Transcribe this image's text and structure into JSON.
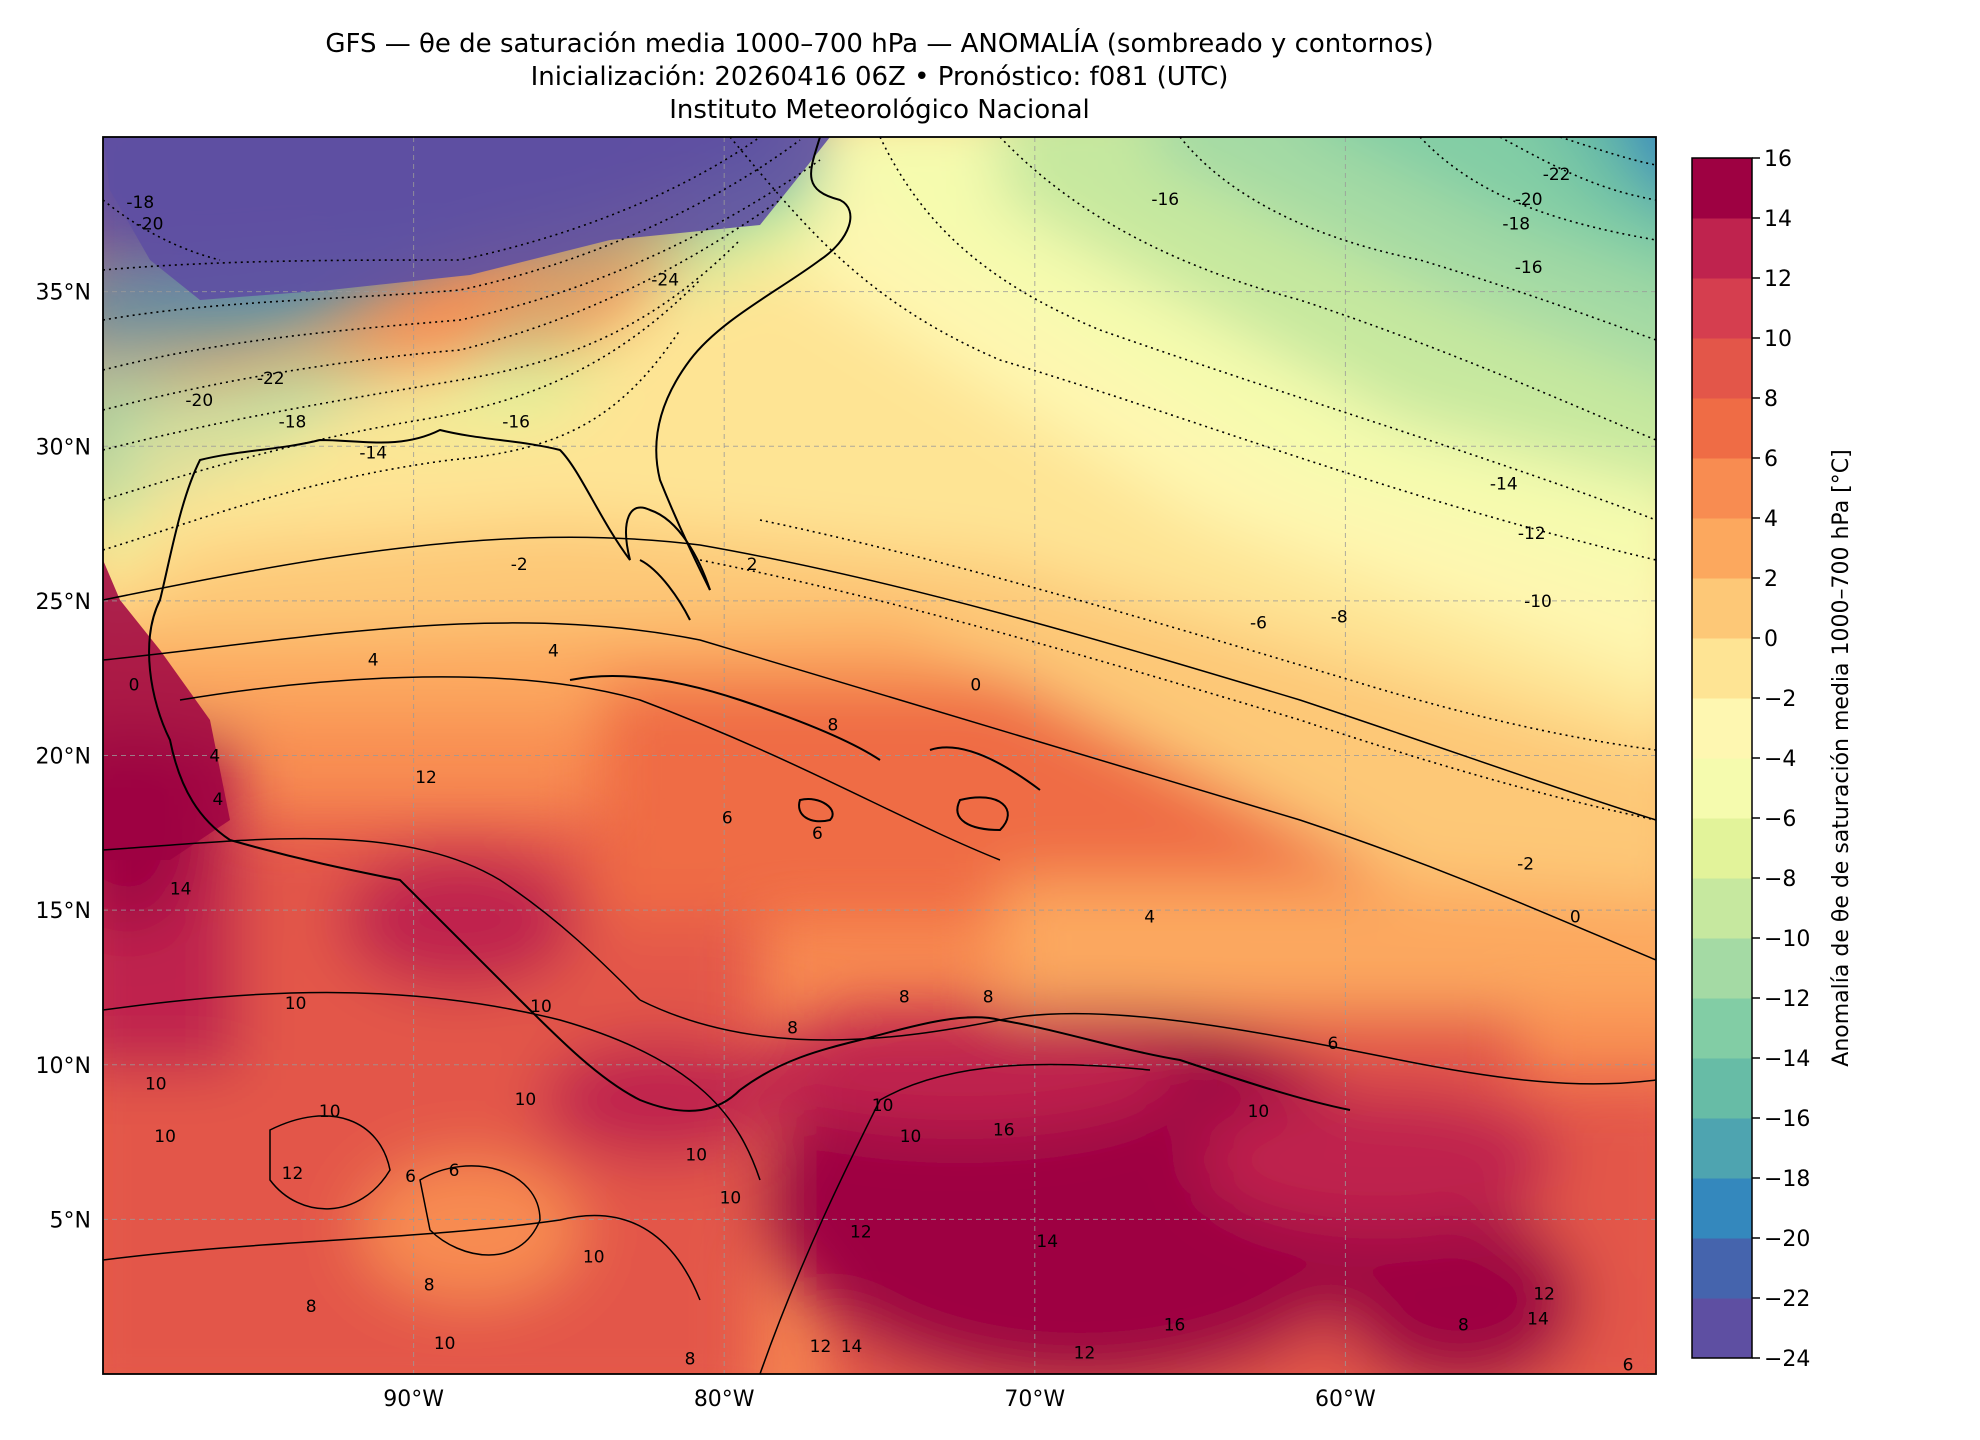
{
  "title": {
    "line1": "GFS — θe de saturación media 1000–700 hPa — ANOMALÍA (sombreado y contornos)",
    "line2": "Inicialización: 20260416 06Z   •   Pronóstico: f081 (UTC)",
    "line3": "Instituto Meteorológico Nacional"
  },
  "map": {
    "lon_range": [
      -100,
      -50
    ],
    "lat_range": [
      0,
      40
    ],
    "lon_ticks": [
      {
        "value": -90,
        "label": "90°W"
      },
      {
        "value": -80,
        "label": "80°W"
      },
      {
        "value": -70,
        "label": "70°W"
      },
      {
        "value": -60,
        "label": "60°W"
      }
    ],
    "lat_ticks": [
      {
        "value": 5,
        "label": "5°N"
      },
      {
        "value": 10,
        "label": "10°N"
      },
      {
        "value": 15,
        "label": "15°N"
      },
      {
        "value": 20,
        "label": "20°N"
      },
      {
        "value": 25,
        "label": "25°N"
      },
      {
        "value": 30,
        "label": "30°N"
      },
      {
        "value": 35,
        "label": "35°N"
      }
    ],
    "gridlines": true,
    "contour_labels": [
      {
        "text": "-22",
        "lon": -53.2,
        "lat": 38.8
      },
      {
        "text": "-20",
        "lon": -54.1,
        "lat": 38.0
      },
      {
        "text": "-18",
        "lon": -54.5,
        "lat": 37.2
      },
      {
        "text": "-16",
        "lon": -54.1,
        "lat": 35.8
      },
      {
        "text": "-16",
        "lon": -65.8,
        "lat": 38.0
      },
      {
        "text": "-14",
        "lon": -54.9,
        "lat": 28.8
      },
      {
        "text": "-12",
        "lon": -54.0,
        "lat": 27.2
      },
      {
        "text": "-10",
        "lon": -53.8,
        "lat": 25.0
      },
      {
        "text": "-8",
        "lon": -60.2,
        "lat": 24.5
      },
      {
        "text": "-6",
        "lon": -62.8,
        "lat": 24.3
      },
      {
        "text": "-2",
        "lon": -54.2,
        "lat": 16.5
      },
      {
        "text": "0",
        "lon": -52.6,
        "lat": 14.8
      },
      {
        "text": "0",
        "lon": -71.9,
        "lat": 22.3
      },
      {
        "text": "-24",
        "lon": -81.9,
        "lat": 35.4
      },
      {
        "text": "-22",
        "lon": -94.6,
        "lat": 32.2
      },
      {
        "text": "-20",
        "lon": -96.9,
        "lat": 31.5
      },
      {
        "text": "-18",
        "lon": -93.9,
        "lat": 30.8
      },
      {
        "text": "-16",
        "lon": -86.7,
        "lat": 30.8
      },
      {
        "text": "-14",
        "lon": -91.3,
        "lat": 29.8
      },
      {
        "text": "-18",
        "lon": -98.8,
        "lat": 37.9
      },
      {
        "text": "-20",
        "lon": -98.5,
        "lat": 37.2
      },
      {
        "text": "-2",
        "lon": -86.6,
        "lat": 26.2
      },
      {
        "text": "2",
        "lon": -79.1,
        "lat": 26.2
      },
      {
        "text": "4",
        "lon": -91.3,
        "lat": 23.1
      },
      {
        "text": "4",
        "lon": -85.5,
        "lat": 23.4
      },
      {
        "text": "0",
        "lon": -99.0,
        "lat": 22.3
      },
      {
        "text": "4",
        "lon": -96.4,
        "lat": 20.0
      },
      {
        "text": "4",
        "lon": -96.3,
        "lat": 18.6
      },
      {
        "text": "12",
        "lon": -89.6,
        "lat": 19.3
      },
      {
        "text": "14",
        "lon": -97.5,
        "lat": 15.7
      },
      {
        "text": "6",
        "lon": -79.9,
        "lat": 18.0
      },
      {
        "text": "6",
        "lon": -77.0,
        "lat": 17.5
      },
      {
        "text": "8",
        "lon": -76.5,
        "lat": 21.0
      },
      {
        "text": "4",
        "lon": -66.3,
        "lat": 14.8
      },
      {
        "text": "6",
        "lon": -60.4,
        "lat": 10.7
      },
      {
        "text": "8",
        "lon": -74.2,
        "lat": 12.2
      },
      {
        "text": "8",
        "lon": -71.5,
        "lat": 12.2
      },
      {
        "text": "8",
        "lon": -77.8,
        "lat": 11.2
      },
      {
        "text": "10",
        "lon": -85.9,
        "lat": 11.9
      },
      {
        "text": "10",
        "lon": -93.8,
        "lat": 12.0
      },
      {
        "text": "10",
        "lon": -86.4,
        "lat": 8.9
      },
      {
        "text": "10",
        "lon": -92.7,
        "lat": 8.5
      },
      {
        "text": "10",
        "lon": -98.3,
        "lat": 9.4
      },
      {
        "text": "10",
        "lon": -98.0,
        "lat": 7.7
      },
      {
        "text": "12",
        "lon": -93.9,
        "lat": 6.5
      },
      {
        "text": "6",
        "lon": -90.1,
        "lat": 6.4
      },
      {
        "text": "6",
        "lon": -88.7,
        "lat": 6.6
      },
      {
        "text": "10",
        "lon": -80.9,
        "lat": 7.1
      },
      {
        "text": "10",
        "lon": -74.9,
        "lat": 8.7
      },
      {
        "text": "10",
        "lon": -74.0,
        "lat": 7.7
      },
      {
        "text": "10",
        "lon": -79.8,
        "lat": 5.7
      },
      {
        "text": "16",
        "lon": -71.0,
        "lat": 7.9
      },
      {
        "text": "10",
        "lon": -62.8,
        "lat": 8.5
      },
      {
        "text": "14",
        "lon": -69.6,
        "lat": 4.3
      },
      {
        "text": "12",
        "lon": -75.6,
        "lat": 4.6
      },
      {
        "text": "10",
        "lon": -84.2,
        "lat": 3.8
      },
      {
        "text": "8",
        "lon": -93.3,
        "lat": 2.2
      },
      {
        "text": "8",
        "lon": -89.5,
        "lat": 2.9
      },
      {
        "text": "10",
        "lon": -89.0,
        "lat": 1.0
      },
      {
        "text": "8",
        "lon": -81.1,
        "lat": 0.5
      },
      {
        "text": "12",
        "lon": -76.9,
        "lat": 0.9
      },
      {
        "text": "14",
        "lon": -75.9,
        "lat": 0.9
      },
      {
        "text": "12",
        "lon": -68.4,
        "lat": 0.7
      },
      {
        "text": "16",
        "lon": -65.5,
        "lat": 1.6
      },
      {
        "text": "12",
        "lon": -53.6,
        "lat": 2.6
      },
      {
        "text": "14",
        "lon": -53.8,
        "lat": 1.8
      },
      {
        "text": "8",
        "lon": -56.2,
        "lat": 1.6
      },
      {
        "text": "6",
        "lon": -50.9,
        "lat": 0.3
      }
    ]
  },
  "colorbar": {
    "label": "Anomalía de θe de saturación media 1000–700 hPa [°C]",
    "min": -24,
    "max": 16,
    "step": 2,
    "tick_labels": [
      "16",
      "14",
      "12",
      "10",
      "8",
      "6",
      "4",
      "2",
      "0",
      "−2",
      "−4",
      "−6",
      "−8",
      "−10",
      "−12",
      "−14",
      "−16",
      "−18",
      "−20",
      "−22",
      "−24"
    ],
    "colors": [
      "#5e4fa2",
      "#4564ad",
      "#3488bd",
      "#4ea4b0",
      "#67bca6",
      "#82cda5",
      "#a4daa4",
      "#c6e89f",
      "#e2f39a",
      "#f5fbae",
      "#fef7b1",
      "#fee494",
      "#fdc877",
      "#fca85e",
      "#f88c51",
      "#ef6c45",
      "#e35649",
      "#d53e4f",
      "#bf234e",
      "#9e0142"
    ]
  }
}
